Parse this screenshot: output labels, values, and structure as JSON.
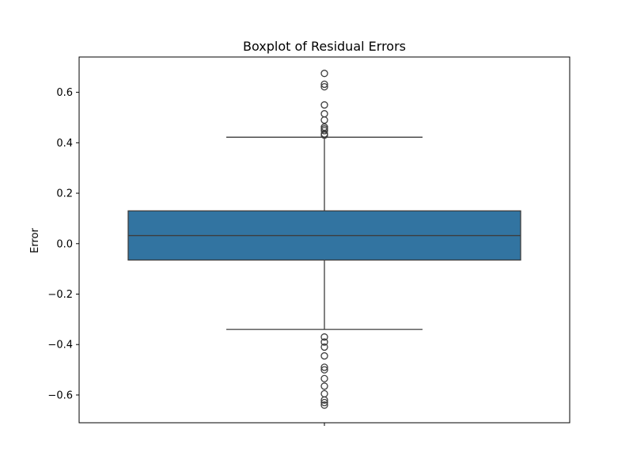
{
  "chart_data": {
    "type": "boxplot",
    "title": "Boxplot of Residual Errors",
    "ylabel": "Error",
    "xlabel": "",
    "ylim": [
      -0.71,
      0.74
    ],
    "yticks": [
      -0.6,
      -0.4,
      -0.2,
      0.0,
      0.2,
      0.4,
      0.6
    ],
    "ytick_labels": [
      "−0.6",
      "−0.4",
      "−0.2",
      "0.0",
      "0.2",
      "0.4",
      "0.6"
    ],
    "grid": false,
    "box": {
      "q1": -0.065,
      "median": 0.032,
      "q3": 0.13,
      "whisker_low": -0.34,
      "whisker_high": 0.422,
      "fill_color": "#3274a1",
      "edge_color": "#3d3d3d"
    },
    "outliers": [
      0.675,
      0.632,
      0.622,
      0.55,
      0.515,
      0.49,
      0.462,
      0.455,
      0.448,
      0.435,
      0.43,
      -0.37,
      -0.39,
      -0.41,
      -0.445,
      -0.49,
      -0.5,
      -0.535,
      -0.565,
      -0.595,
      -0.62,
      -0.63,
      -0.64
    ]
  }
}
